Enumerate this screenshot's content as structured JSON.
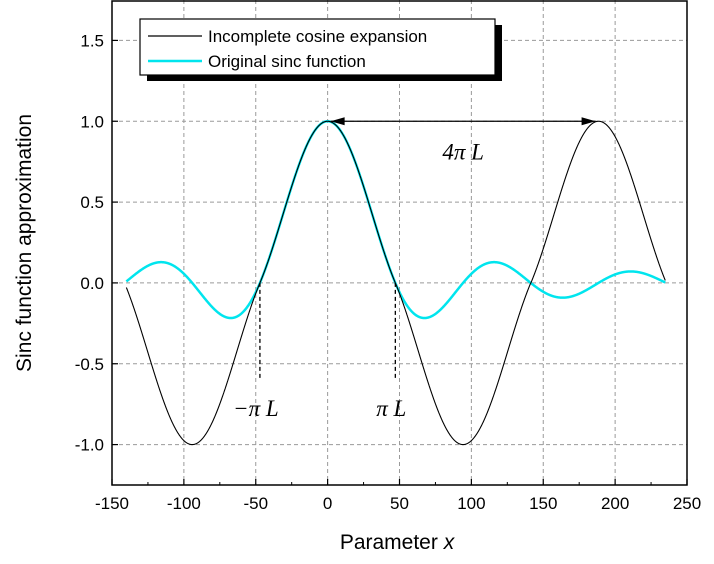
{
  "chart_data": {
    "type": "line",
    "title": "",
    "xlabel_prefix": "Parameter ",
    "xlabel_var": "x",
    "ylabel": "Sinc function approximation",
    "xlim": [
      -150,
      250
    ],
    "ylim": [
      -1.25,
      1.75
    ],
    "x_ticks": [
      -150,
      -100,
      -50,
      0,
      50,
      100,
      150,
      200,
      250
    ],
    "x_tick_labels": [
      "-150",
      "-100",
      "-50",
      "0",
      "50",
      "100",
      "150",
      "200",
      "250"
    ],
    "y_ticks": [
      -1.0,
      -0.5,
      0.0,
      0.5,
      1.0,
      1.5
    ],
    "y_tick_labels": [
      "-1.0",
      "-0.5",
      "0.0",
      "0.5",
      "1.0",
      "1.5"
    ],
    "grid": true,
    "legend_position": "top-left",
    "series": [
      {
        "name": "Incomplete cosine expansion",
        "color": "#000000",
        "x_range": [
          -140,
          235
        ],
        "spike_centers": [
          -94.2,
          0,
          94.2,
          188.5
        ],
        "spike_signs": [
          -1,
          1,
          -1,
          1
        ]
      },
      {
        "name": "Original sinc function",
        "color": "#00e5ee",
        "x_range": [
          -140,
          235
        ],
        "peak": 1.0
      }
    ],
    "annotations": [
      {
        "label": "4π L",
        "type": "double-arrow",
        "x_from": 0,
        "x_to": 188.5,
        "y": 1.0
      },
      {
        "label": "−π L",
        "type": "dashed-marker",
        "x": -47.1
      },
      {
        "label": "π L",
        "type": "dashed-marker",
        "x": 47.1
      }
    ]
  }
}
